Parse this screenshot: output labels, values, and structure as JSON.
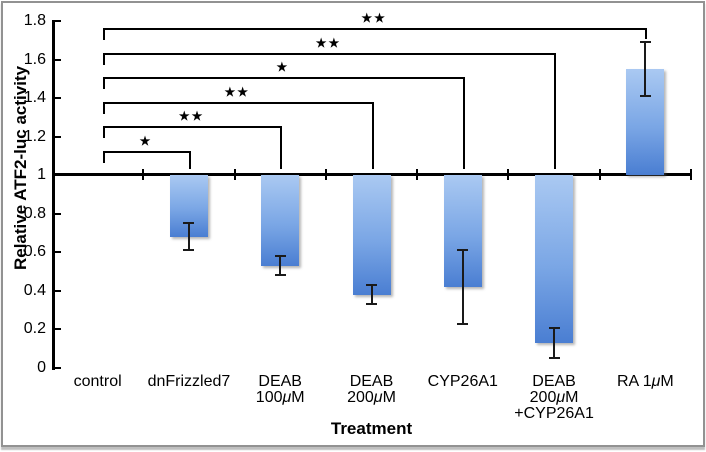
{
  "figure": {
    "y_axis_title": "Relative ATF2-luc activity",
    "x_axis_title": "Treatment"
  },
  "chart_data": {
    "type": "bar",
    "title": "",
    "ylabel": "Relative ATF2-luc activity",
    "xlabel": "Treatment",
    "ylim": [
      0,
      1.8
    ],
    "y_tick_labels": [
      "1.8",
      "1.6",
      "1.4",
      "1.2",
      "1",
      "0.8",
      "0.6",
      "0.4",
      "0.2",
      "0"
    ],
    "y_tick_values": [
      1.8,
      1.6,
      1.4,
      1.2,
      1.0,
      0.8,
      0.6,
      0.4,
      0.2,
      0
    ],
    "baseline_value": 1,
    "grid": false,
    "legend": "none",
    "bar_fill_top": "#aac9f2",
    "bar_fill_bottom": "#4a7ed2",
    "axis_color": "#000000",
    "categories": [
      "control",
      "dnFrizzled7",
      "DEAB\n100μM",
      "DEAB\n200μM",
      "CYP26A1",
      "DEAB\n200μM\n+CYP26A1",
      "RA 1μM"
    ],
    "values": [
      1.0,
      0.68,
      0.53,
      0.38,
      0.42,
      0.13,
      1.55
    ],
    "error_bars": [
      0,
      0.07,
      0.05,
      0.05,
      0.19,
      0.08,
      0.14
    ],
    "significance_brackets": [
      {
        "from": "control",
        "to": "RA 1μM",
        "from_index": 0,
        "to_index": 6,
        "label": "**"
      },
      {
        "from": "control",
        "to": "DEAB 200μM+CYP26A1",
        "from_index": 0,
        "to_index": 5,
        "label": "**"
      },
      {
        "from": "control",
        "to": "CYP26A1",
        "from_index": 0,
        "to_index": 4,
        "label": "*"
      },
      {
        "from": "control",
        "to": "DEAB 200μM",
        "from_index": 0,
        "to_index": 3,
        "label": "**"
      },
      {
        "from": "control",
        "to": "DEAB 100μM",
        "from_index": 0,
        "to_index": 2,
        "label": "**"
      },
      {
        "from": "control",
        "to": "dnFrizzled7",
        "from_index": 0,
        "to_index": 1,
        "label": "*"
      }
    ]
  }
}
